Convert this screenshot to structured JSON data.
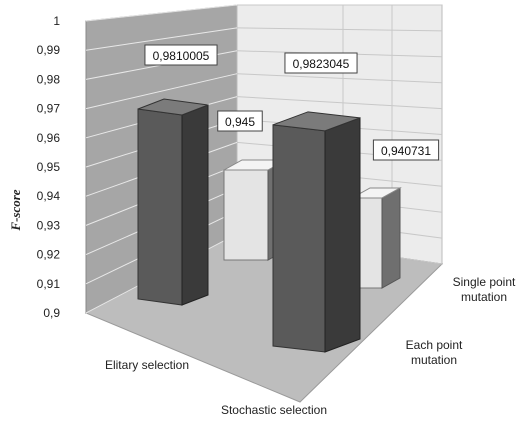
{
  "chart_data": {
    "type": "bar",
    "ylabel": "F-score",
    "ylim": [
      0.9,
      1.0
    ],
    "yticks": [
      "0,9",
      "0,91",
      "0,92",
      "0,93",
      "0,94",
      "0,95",
      "0,96",
      "0,97",
      "0,98",
      "0,99",
      "1"
    ],
    "x_categories": [
      "Elitary selection",
      "Stochastic selection"
    ],
    "depth_categories": [
      "Single point mutation",
      "Each point mutation"
    ],
    "depth_label_lines": [
      [
        "Single point",
        "mutation"
      ],
      [
        "Each point",
        "mutation"
      ]
    ],
    "series": [
      {
        "depth": "Single point mutation",
        "values": [
          0.945,
          0.940731
        ],
        "labels": [
          "0,945",
          "0,940731"
        ]
      },
      {
        "depth": "Each point mutation",
        "values": [
          0.9810005,
          0.9823045
        ],
        "labels": [
          "0,9810005",
          "0,9823045"
        ]
      }
    ],
    "grid": true,
    "legend": "none",
    "colors": {
      "wall_left": "#a6a6a6",
      "wall_back": "#ececec",
      "floor": "#bdbdbd",
      "grid": "#ffffff",
      "light_front": "#e4e4e4",
      "light_side": "#6f6f6f",
      "light_top": "#f4f4f4",
      "dark_front": "#5a5a5a",
      "dark_side": "#3a3a3a",
      "dark_top": "#7b7b7b"
    }
  }
}
